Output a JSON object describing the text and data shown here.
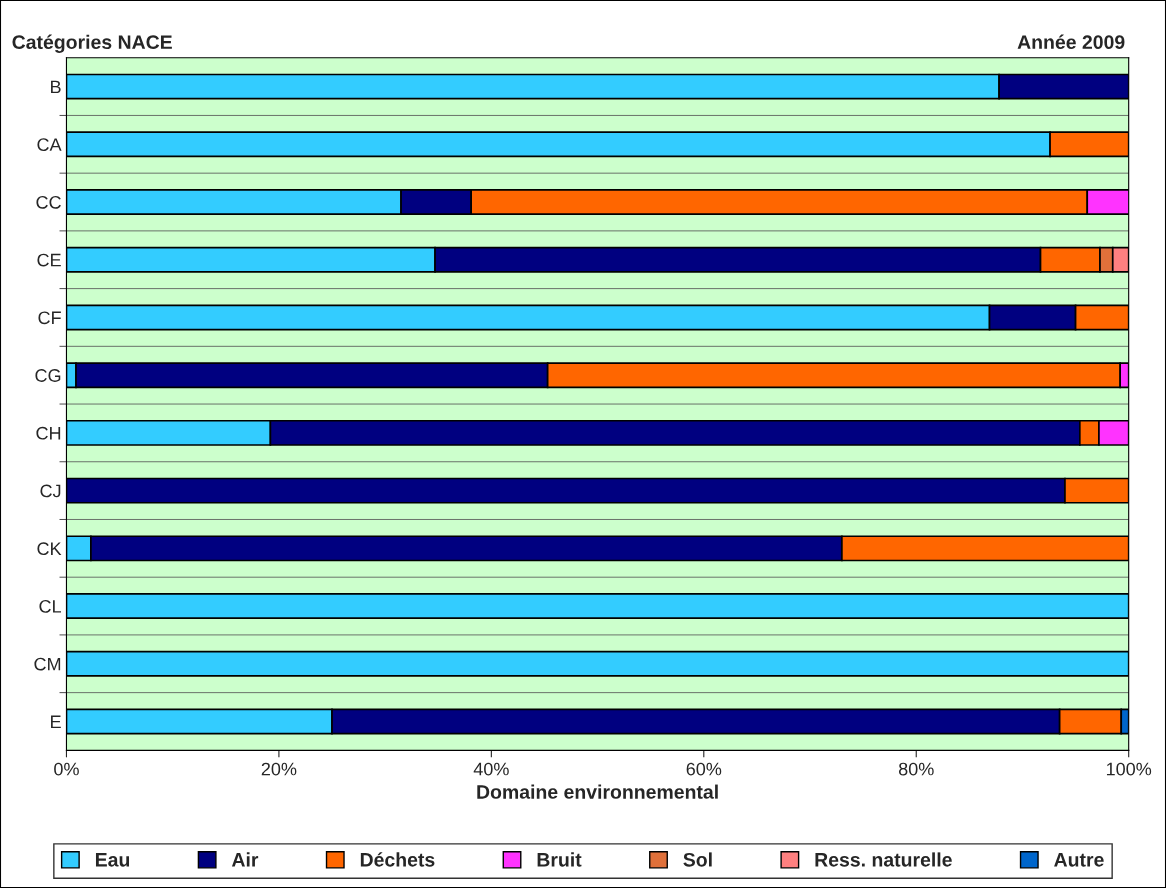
{
  "chart_data": {
    "type": "bar",
    "orientation": "horizontal",
    "stacked": true,
    "title": "Catégories NACE",
    "subtitle": "Année 2009",
    "xlabel": "Domaine environnemental",
    "categories": [
      "B",
      "CA",
      "CC",
      "CE",
      "CF",
      "CG",
      "CH",
      "CJ",
      "CK",
      "CL",
      "CM",
      "E"
    ],
    "series": [
      {
        "name": "Eau",
        "color": "#33ccff",
        "values": [
          87.8,
          92.6,
          31.5,
          34.7,
          86.9,
          0.9,
          19.2,
          null,
          2.3,
          100,
          100,
          25.0
        ]
      },
      {
        "name": "Air",
        "color": "#000080",
        "values": [
          12.2,
          null,
          6.6,
          57.0,
          8.1,
          44.4,
          76.2,
          94.0,
          70.7,
          null,
          null,
          68.5
        ]
      },
      {
        "name": "Déchets",
        "color": "#ff6600",
        "values": [
          null,
          7.4,
          58.0,
          5.6,
          5.0,
          53.9,
          1.8,
          6.0,
          27.0,
          null,
          null,
          5.8
        ]
      },
      {
        "name": "Bruit",
        "color": "#ff33ff",
        "values": [
          null,
          null,
          4.0,
          null,
          null,
          0.8,
          2.8,
          null,
          null,
          null,
          null,
          null
        ]
      },
      {
        "name": "Sol",
        "color": "#e0703a",
        "values": [
          null,
          null,
          null,
          1.2,
          null,
          null,
          null,
          null,
          null,
          null,
          null,
          null
        ]
      },
      {
        "name": "Ress. naturelle",
        "color": "#ff8080",
        "values": [
          null,
          null,
          null,
          1.5,
          null,
          null,
          null,
          null,
          null,
          null,
          null,
          null
        ]
      },
      {
        "name": "Autre",
        "color": "#0066cc",
        "values": [
          null,
          null,
          null,
          null,
          null,
          null,
          null,
          null,
          null,
          null,
          null,
          0.7
        ]
      }
    ],
    "xlim": [
      0,
      100
    ],
    "xticks": [
      {
        "value": 0,
        "label": "0%"
      },
      {
        "value": 20,
        "label": "20%"
      },
      {
        "value": 40,
        "label": "40%"
      },
      {
        "value": 60,
        "label": "60%"
      },
      {
        "value": 80,
        "label": "80%"
      },
      {
        "value": 100,
        "label": "100%"
      }
    ],
    "grid": false,
    "legend": "bottom"
  }
}
